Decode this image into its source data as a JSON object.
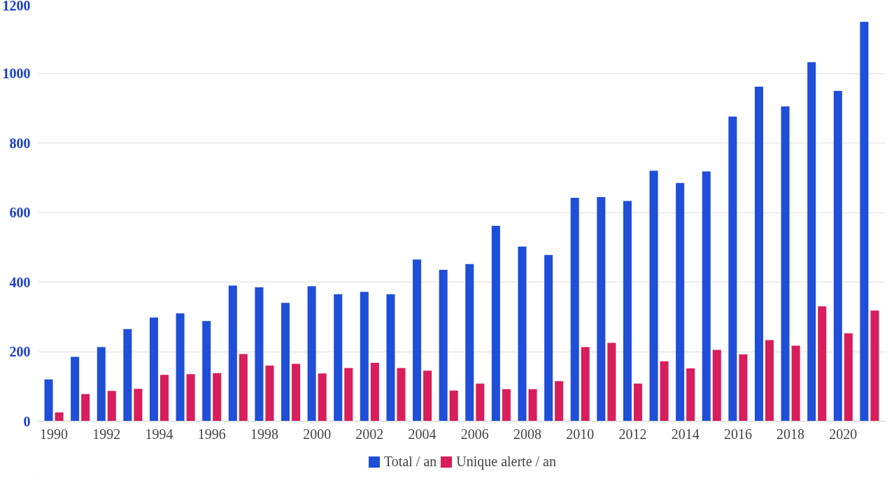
{
  "chart_data": {
    "type": "bar",
    "x": [
      1990,
      1991,
      1992,
      1993,
      1994,
      1995,
      1996,
      1997,
      1998,
      1999,
      2000,
      2001,
      2002,
      2003,
      2004,
      2005,
      2006,
      2007,
      2008,
      2009,
      2010,
      2011,
      2012,
      2013,
      2014,
      2015,
      2016,
      2017,
      2018,
      2019,
      2020,
      2021
    ],
    "series": [
      {
        "name": "Total / an",
        "color": "#1f4fd8",
        "values": [
          120,
          185,
          213,
          265,
          298,
          310,
          288,
          390,
          385,
          340,
          388,
          365,
          372,
          365,
          465,
          435,
          452,
          562,
          502,
          478,
          642,
          644,
          633,
          720,
          685,
          718,
          876,
          962,
          905,
          1032,
          950,
          1148
        ]
      },
      {
        "name": "Unique alerte / an",
        "color": "#d81e5b",
        "values": [
          25,
          78,
          87,
          93,
          133,
          135,
          138,
          193,
          160,
          165,
          137,
          153,
          168,
          153,
          145,
          88,
          108,
          92,
          92,
          115,
          213,
          225,
          108,
          172,
          152,
          205,
          192,
          233,
          217,
          330,
          253,
          318
        ]
      }
    ],
    "xlim": [
      1989.4,
      2021.6
    ],
    "xticks": [
      1990,
      1992,
      1994,
      1996,
      1998,
      2000,
      2002,
      2004,
      2006,
      2008,
      2010,
      2012,
      2014,
      2016,
      2018,
      2020
    ],
    "ylim": [
      0,
      1200
    ],
    "yticks": [
      0,
      200,
      400,
      600,
      800,
      1000,
      1200
    ],
    "grid": "y",
    "legend": "bottom"
  }
}
